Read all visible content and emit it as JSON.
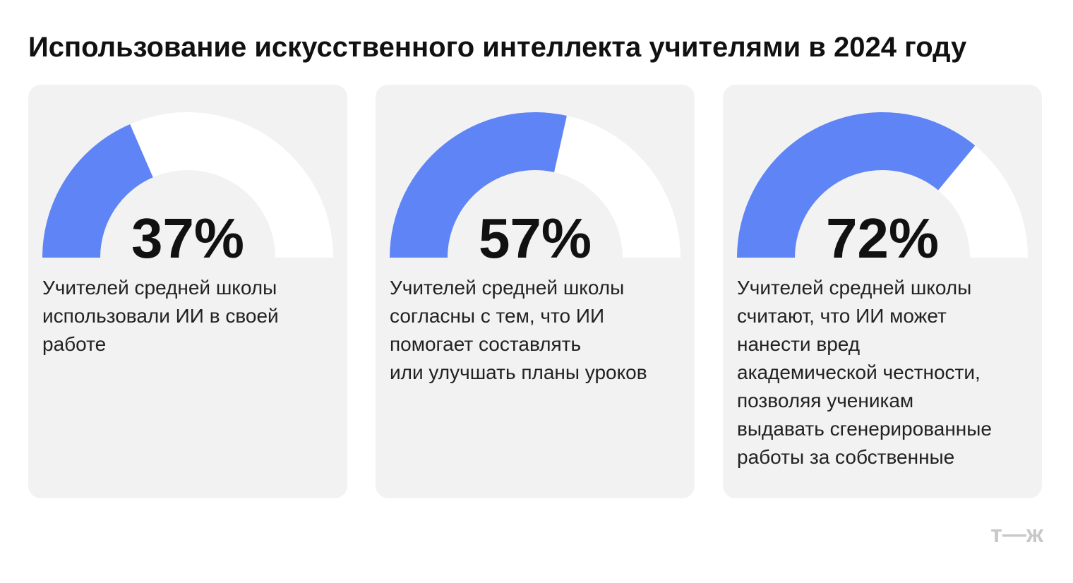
{
  "title": "Использование искусственного интеллекта учителями в 2024 году",
  "logo": "т—ж",
  "chart_data": [
    {
      "type": "gauge",
      "values": [
        37
      ],
      "value_labels": [
        "37%"
      ],
      "ylim": [
        0,
        100
      ],
      "color": "#5f84f5",
      "track_color": "#ffffff",
      "caption": [
        "Учителей средней школы",
        "использовали ИИ в своей",
        "работе"
      ]
    },
    {
      "type": "gauge",
      "values": [
        57
      ],
      "value_labels": [
        "57%"
      ],
      "ylim": [
        0,
        100
      ],
      "color": "#5f84f5",
      "track_color": "#ffffff",
      "caption": [
        "Учителей средней школы",
        "согласны с тем, что ИИ",
        "помогает составлять",
        "или улучшать планы уроков"
      ]
    },
    {
      "type": "gauge",
      "values": [
        72
      ],
      "value_labels": [
        "72%"
      ],
      "ylim": [
        0,
        100
      ],
      "color": "#5f84f5",
      "track_color": "#ffffff",
      "caption": [
        "Учителей средней школы",
        "считают, что ИИ может",
        "нанести вред",
        "академической честности,",
        "позволяя ученикам",
        "выдавать сгенерированные",
        "работы за собственные"
      ]
    }
  ]
}
